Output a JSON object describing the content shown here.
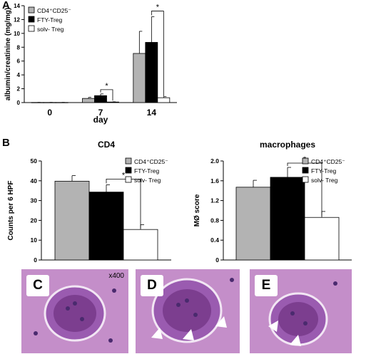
{
  "panels": {
    "a": "A",
    "b": "B",
    "c": "C",
    "d": "D",
    "e": "E"
  },
  "magnification": "x400",
  "colors": {
    "cd4cd25": "#b3b3b3",
    "fty": "#000000",
    "solv": "#ffffff",
    "stain_bg": "#c48ec9",
    "stain_dark": "#7c3e8f",
    "nuclei": "#4a2a6e"
  },
  "chart_data": [
    {
      "type": "bar",
      "title": "",
      "xlabel": "day",
      "ylabel": "albumin/creatinine (mg/mg)",
      "categories": [
        "0",
        "7",
        "14"
      ],
      "ylim": [
        0,
        14
      ],
      "yticks": [
        "0",
        "2",
        "4",
        "6",
        "8",
        "10",
        "12",
        "14"
      ],
      "legend_position": "top-left",
      "series": [
        {
          "name": "CD4⁺CD25⁻",
          "values": [
            0.02,
            0.6,
            7.1
          ],
          "errors": [
            0.01,
            0.15,
            3.2
          ]
        },
        {
          "name": "FTY-Treg",
          "values": [
            0.02,
            1.0,
            8.7
          ],
          "errors": [
            0.01,
            0.25,
            3.7
          ]
        },
        {
          "name": "solv- Treg",
          "values": [
            0.02,
            0.08,
            0.7
          ],
          "errors": [
            0.01,
            0.03,
            0.15
          ]
        }
      ],
      "annotations": [
        "*",
        "*"
      ]
    },
    {
      "type": "bar",
      "title": "CD4",
      "xlabel": "",
      "ylabel": "Counts per 6 HPF",
      "categories": [
        ""
      ],
      "ylim": [
        0,
        50
      ],
      "yticks": [
        "0",
        "10",
        "20",
        "30",
        "40",
        "50"
      ],
      "legend_position": "top-right",
      "series": [
        {
          "name": "CD4⁺CD25⁻",
          "values": [
            39.8
          ],
          "errors": [
            2.8
          ]
        },
        {
          "name": "FTY-Treg",
          "values": [
            34.3
          ],
          "errors": [
            3.7
          ]
        },
        {
          "name": "solv- Treg",
          "values": [
            15.4
          ],
          "errors": [
            2.4
          ]
        }
      ],
      "annotations": [
        "*"
      ]
    },
    {
      "type": "bar",
      "title": "macrophages",
      "xlabel": "",
      "ylabel": "MØ score",
      "categories": [
        ""
      ],
      "ylim": [
        0,
        2.0
      ],
      "yticks": [
        "0",
        "0.4",
        "0.8",
        "1.2",
        "1.6",
        "2.0"
      ],
      "legend_position": "top-right",
      "series": [
        {
          "name": "CD4⁺CD25⁻",
          "values": [
            1.47
          ],
          "errors": [
            0.14
          ]
        },
        {
          "name": "FTY-Treg",
          "values": [
            1.67
          ],
          "errors": [
            0.2
          ]
        },
        {
          "name": "solv- Treg",
          "values": [
            0.86
          ],
          "errors": [
            0.12
          ]
        }
      ],
      "annotations": [
        "*"
      ]
    }
  ]
}
